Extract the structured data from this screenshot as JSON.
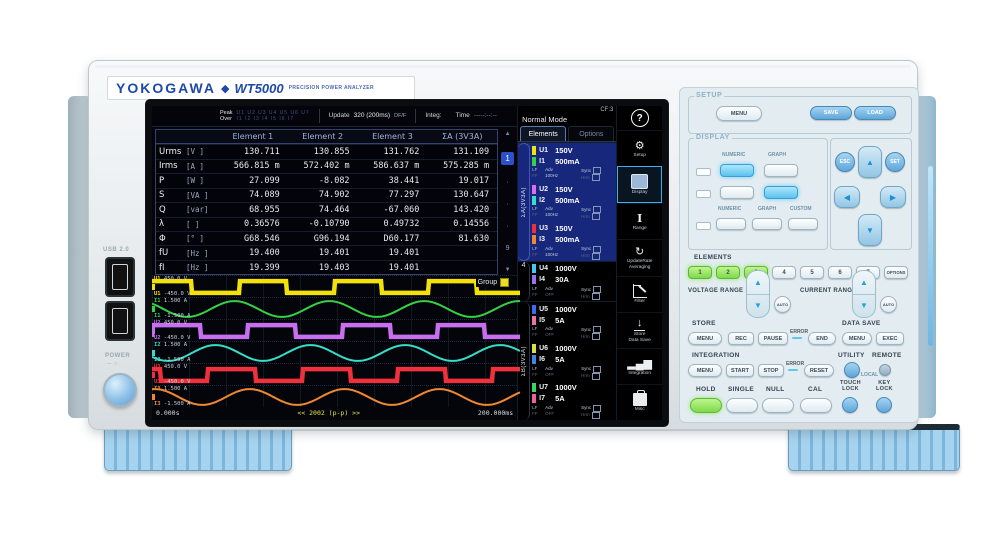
{
  "brand": {
    "name": "YOKOGAWA",
    "diamond": "◆",
    "model": "WT5000",
    "tagline": "PRECISION POWER ANALYZER"
  },
  "left_panel": {
    "usb_label": "USB 2.0",
    "power_label": "POWER",
    "power_symbols": "─ ○"
  },
  "screen": {
    "status": {
      "peak_label": "Peak",
      "over_label": "Over",
      "peak_row1": "U1 U2 U3 U4 U5 U6 U7",
      "peak_row2": "I1 I2 I3 I4 I5 I6 I7",
      "update_label": "Update",
      "update_value": "320 (200ms)",
      "update_mode": "DF/F",
      "integ_label": "Integ:",
      "time_label": "Time",
      "time_value": "-----:--:--"
    },
    "cf": "CF:3",
    "mode": "Normal Mode",
    "help": "?",
    "tabs": [
      "Elements",
      "Options"
    ],
    "table": {
      "headers": [
        "Element 1",
        "Element 2",
        "Element 3",
        "ΣA (3V3A)"
      ],
      "rows": [
        {
          "name": "Urms",
          "unit": "[V  ]",
          "values": [
            "130.711",
            "130.855",
            "131.762",
            "131.109"
          ]
        },
        {
          "name": "Irms",
          "unit": "[A  ]",
          "values": [
            "566.815 m",
            "572.402 m",
            "586.637 m",
            "575.285 m"
          ]
        },
        {
          "name": "P",
          "unit": "[W  ]",
          "values": [
            "27.099",
            "-8.082",
            "38.441",
            "19.017"
          ]
        },
        {
          "name": "S",
          "unit": "[VA ]",
          "values": [
            "74.089",
            "74.902",
            "77.297",
            "130.647"
          ]
        },
        {
          "name": "Q",
          "unit": "[var]",
          "values": [
            "68.955",
            "74.464",
            "-67.060",
            "143.420"
          ]
        },
        {
          "name": "λ",
          "unit": "[   ]",
          "values": [
            "0.36576",
            "-0.10790",
            "0.49732",
            "0.14556"
          ]
        },
        {
          "name": "Φ",
          "unit": "[°  ]",
          "values": [
            "G68.546",
            "G96.194",
            "D60.177",
            "81.630"
          ]
        },
        {
          "name": "fU",
          "unit": "[Hz ]",
          "values": [
            "19.400",
            "19.401",
            "19.401",
            ""
          ]
        },
        {
          "name": "fI",
          "unit": "[Hz ]",
          "values": [
            "19.399",
            "19.403",
            "19.401",
            ""
          ]
        }
      ]
    },
    "pager": {
      "up": "▲",
      "current": "1",
      "dots": [
        "·",
        "·",
        "·"
      ],
      "last": "9",
      "down": "▼"
    },
    "element_sublabels": {
      "lf": "LF",
      "ff": "FF",
      "adv": "Adv",
      "sync": "Sync",
      "hrm": "Hrm"
    },
    "element_groups": [
      {
        "rail": "ΣA(3V3A)",
        "from": 1,
        "to": 3,
        "selected": true
      },
      {
        "rail": "4",
        "from": 4,
        "to": 4,
        "selected": false
      },
      {
        "rail": "ΣB(3V3A)",
        "from": 5,
        "to": 7,
        "selected": false
      }
    ],
    "elements": [
      {
        "u": "U1",
        "u_color": "#f2e20a",
        "u_range": "150V",
        "i": "I1",
        "i_color": "#35d045",
        "i_range": "500mA",
        "adv": "100Hz"
      },
      {
        "u": "U2",
        "u_color": "#d86ef0",
        "u_range": "150V",
        "i": "I2",
        "i_color": "#38dcc8",
        "i_range": "500mA",
        "adv": "100Hz"
      },
      {
        "u": "U3",
        "u_color": "#f0303c",
        "u_range": "150V",
        "i": "I3",
        "i_color": "#f08830",
        "i_range": "500mA",
        "adv": "100Hz"
      },
      {
        "u": "U4",
        "u_color": "#42c8f0",
        "u_range": "1000V",
        "i": "I4",
        "i_color": "#9a72e8",
        "i_range": "30A",
        "adv": "OFF"
      },
      {
        "u": "U5",
        "u_color": "#3a6cf0",
        "u_range": "1000V",
        "i": "I5",
        "i_color": "#f070a8",
        "i_range": "5A",
        "adv": "OFF"
      },
      {
        "u": "U6",
        "u_color": "#d8e040",
        "u_range": "1000V",
        "i": "I6",
        "i_color": "#4084e8",
        "i_range": "5A",
        "adv": "OFF"
      },
      {
        "u": "U7",
        "u_color": "#38d860",
        "u_range": "1000V",
        "i": "I7",
        "i_color": "#f060a0",
        "i_range": "5A",
        "adv": "OFF"
      }
    ],
    "icon_menu": [
      {
        "id": "setup",
        "glyph": "⚙",
        "lines": [
          "Setup"
        ]
      },
      {
        "id": "display",
        "lines": [
          "Display"
        ],
        "active": true
      },
      {
        "id": "range",
        "glyph": "I",
        "lines": [
          "Range"
        ]
      },
      {
        "id": "update",
        "glyph": "↻",
        "lines": [
          "UpdateRate",
          "Averaging"
        ]
      },
      {
        "id": "filter",
        "lines": [
          "Filter"
        ]
      },
      {
        "id": "store",
        "glyph": "↓",
        "lines": [
          "Store",
          "Data Save"
        ]
      },
      {
        "id": "integration",
        "glyph": "▂▄▆",
        "lines": [
          "Integration"
        ]
      },
      {
        "id": "misc",
        "lines": [
          "Misc"
        ]
      }
    ],
    "waveforms": {
      "group_label": "Group",
      "x_start": "0.000s",
      "x_center": "<< 2002 (p-p) >>",
      "x_end": "200.000ms",
      "cycles": 3.88,
      "traces": [
        {
          "ch": "U1",
          "color": "#f2e20a",
          "type": "square",
          "top_value": "450.0 V",
          "bottom_value": "-450.0 V",
          "phase": 0.08
        },
        {
          "ch": "I1",
          "color": "#35d045",
          "type": "sine",
          "top_value": "1.500 A",
          "bottom_value": "-1.500 A",
          "phase": 0.38
        },
        {
          "ch": "U2",
          "color": "#c86ef0",
          "type": "square",
          "top_value": "450.0 V",
          "bottom_value": "-450.0 V",
          "phase": 0.99
        },
        {
          "ch": "I2",
          "color": "#38dcc8",
          "type": "sine",
          "top_value": "1.500 A",
          "bottom_value": "-1.500 A",
          "phase": 0.58
        },
        {
          "ch": "U3",
          "color": "#f0303c",
          "type": "square",
          "top_value": "450.0 V",
          "bottom_value": "-450.0 V",
          "phase": 0.41
        },
        {
          "ch": "I3",
          "color": "#f08830",
          "type": "sine",
          "top_value": "1.500 A",
          "bottom_value": "-1.500 A",
          "phase": 0.22
        }
      ]
    }
  },
  "panel": {
    "setup": {
      "label": "SETUP",
      "menu": "MENU",
      "save": "SAVE",
      "load": "LOAD"
    },
    "display": {
      "label": "DISPLAY",
      "numeric": "NUMERIC",
      "graph": "GRAPH",
      "custom": "CUSTOM"
    },
    "nav": {
      "esc": "ESC",
      "set": "SET",
      "up": "▲",
      "down": "▼",
      "left": "◀",
      "right": "▶"
    },
    "elements": {
      "label": "ELEMENTS",
      "keys": [
        "1",
        "2",
        "3",
        "4",
        "5",
        "6",
        "7",
        "OPTIONS"
      ],
      "active_keys": [
        "1",
        "2",
        "3"
      ]
    },
    "voltage_range": {
      "label": "VOLTAGE RANGE",
      "auto": "AUTO",
      "up": "▲",
      "down": "▼"
    },
    "current_range": {
      "label": "CURRENT RANGE",
      "auto": "AUTO",
      "up": "▲",
      "down": "▼"
    },
    "store": {
      "label": "STORE",
      "menu": "MENU",
      "rec": "REC",
      "pause": "PAUSE",
      "error": "ERROR",
      "end": "END"
    },
    "data_save": {
      "label": "DATA SAVE",
      "menu": "MENU",
      "exec": "EXEC"
    },
    "integration": {
      "label": "INTEGRATION",
      "menu": "MENU",
      "start": "START",
      "stop": "STOP",
      "error": "ERROR",
      "reset": "RESET"
    },
    "utility": {
      "label": "UTILITY",
      "remote_label": "REMOTE",
      "local_label": "LOCAL"
    },
    "hold": "HOLD",
    "single": "SINGLE",
    "null_key": "NULL",
    "cal": "CAL",
    "touch_lock": [
      "TOUCH",
      "LOCK"
    ],
    "key_lock": [
      "KEY",
      "LOCK"
    ]
  },
  "colors": {
    "accent_blue": "#1d49a8",
    "lit_green": "#7fd94e",
    "lit_blue": "#5cc2ee",
    "screen_select": "#17287c"
  }
}
